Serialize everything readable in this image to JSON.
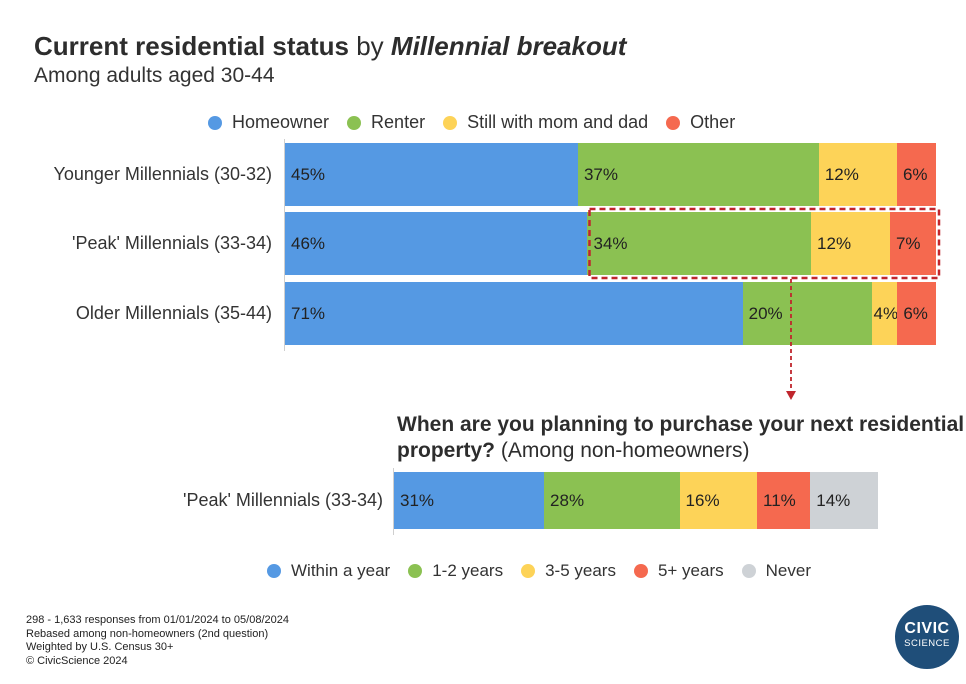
{
  "title": {
    "bold": "Current residential status",
    "mid": " by ",
    "italic": "Millennial breakout"
  },
  "subtitle": "Among adults aged 30-44",
  "legend1": [
    {
      "label": "Homeowner",
      "color": "#5599e3"
    },
    {
      "label": "Renter",
      "color": "#8bc152"
    },
    {
      "label": "Still with mom and dad",
      "color": "#fdd358"
    },
    {
      "label": "Other",
      "color": "#f5694f"
    }
  ],
  "chart_data": [
    {
      "type": "bar",
      "orientation": "horizontal-stacked-100",
      "categories": [
        "Younger Millennials (30-32)",
        "'Peak' Millennials (33-34)",
        "Older Millennials (35-44)"
      ],
      "series": [
        {
          "name": "Homeowner",
          "values": [
            45,
            46,
            71
          ],
          "labels": [
            "45%",
            "46%",
            "71%"
          ]
        },
        {
          "name": "Renter",
          "values": [
            37,
            34,
            20
          ],
          "labels": [
            "37%",
            "34%",
            "20%"
          ]
        },
        {
          "name": "Still with mom and dad",
          "values": [
            12,
            12,
            4
          ],
          "labels": [
            "12%",
            "12%",
            "4%"
          ]
        },
        {
          "name": "Other",
          "values": [
            6,
            7,
            6
          ],
          "labels": [
            "6%",
            "7%",
            "6%"
          ]
        }
      ],
      "highlight": {
        "category": "'Peak' Millennials (33-34)",
        "from_series": "Renter",
        "style": "dashed-red-box"
      }
    },
    {
      "type": "bar",
      "orientation": "horizontal-stacked-100",
      "title_bold": "When are you planning to purchase your next residential property?",
      "title_rest": " (Among non-homeowners)",
      "categories": [
        "'Peak' Millennials (33-34)"
      ],
      "series": [
        {
          "name": "Within a year",
          "values": [
            31
          ],
          "labels": [
            "31%"
          ]
        },
        {
          "name": "1-2 years",
          "values": [
            28
          ],
          "labels": [
            "28%"
          ]
        },
        {
          "name": "3-5 years",
          "values": [
            16
          ],
          "labels": [
            "16%"
          ]
        },
        {
          "name": "5+ years",
          "values": [
            11
          ],
          "labels": [
            "11%"
          ]
        },
        {
          "name": "Never",
          "values": [
            14
          ],
          "labels": [
            "14%"
          ]
        }
      ]
    }
  ],
  "legend2": [
    {
      "label": "Within a year",
      "color": "#5599e3"
    },
    {
      "label": "1-2 years",
      "color": "#8bc152"
    },
    {
      "label": "3-5 years",
      "color": "#fdd358"
    },
    {
      "label": "5+ years",
      "color": "#f5694f"
    },
    {
      "label": "Never",
      "color": "#ced2d6"
    }
  ],
  "footnotes": [
    "298 - 1,633 responses from 01/01/2024 to 05/08/2024",
    "Rebased among non-homeowners (2nd question)",
    "Weighted by U.S. Census 30+",
    "© CivicScience 2024"
  ],
  "logo": {
    "line1": "CIVIC",
    "line2": "SCIENCE"
  }
}
